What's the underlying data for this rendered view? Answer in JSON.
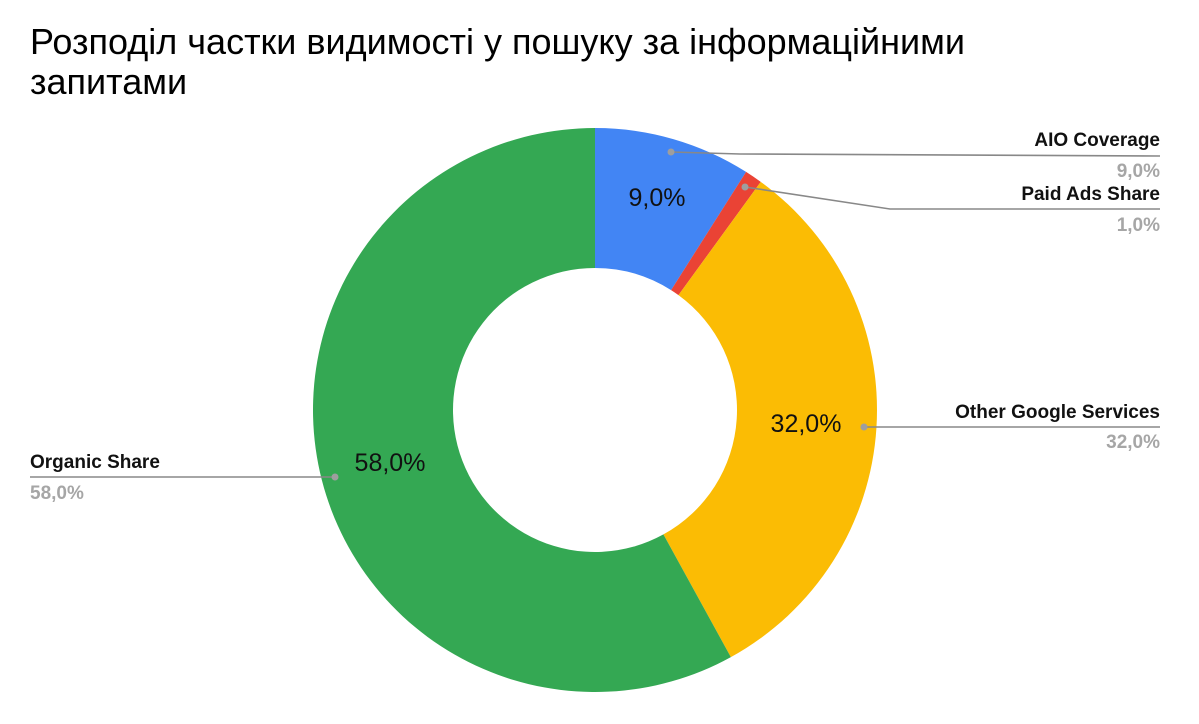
{
  "title": "Розподіл частки видимості у пошуку за інформаційними запитами",
  "chart_data": {
    "type": "pie",
    "donut": true,
    "title": "Розподіл частки видимості у пошуку за інформаційними запитами",
    "categories": [
      "AIO Coverage",
      "Paid Ads Share",
      "Other Google Services",
      "Organic Share"
    ],
    "values": [
      9.0,
      1.0,
      32.0,
      58.0
    ],
    "value_labels": [
      "9,0%",
      "1,0%",
      "32,0%",
      "58,0%"
    ],
    "colors": [
      "#4285f4",
      "#ea4335",
      "#fbbc04",
      "#34a853"
    ],
    "legend_position": "labeled callouts"
  },
  "slices": [
    {
      "name": "AIO Coverage",
      "value": "9,0%",
      "inner_label": "9,0%",
      "color": "#4285f4"
    },
    {
      "name": "Paid Ads Share",
      "value": "1,0%",
      "inner_label": "",
      "color": "#ea4335"
    },
    {
      "name": "Other Google Services",
      "value": "32,0%",
      "inner_label": "32,0%",
      "color": "#fbbc04"
    },
    {
      "name": "Organic Share",
      "value": "58,0%",
      "inner_label": "58,0%",
      "color": "#34a853"
    }
  ]
}
